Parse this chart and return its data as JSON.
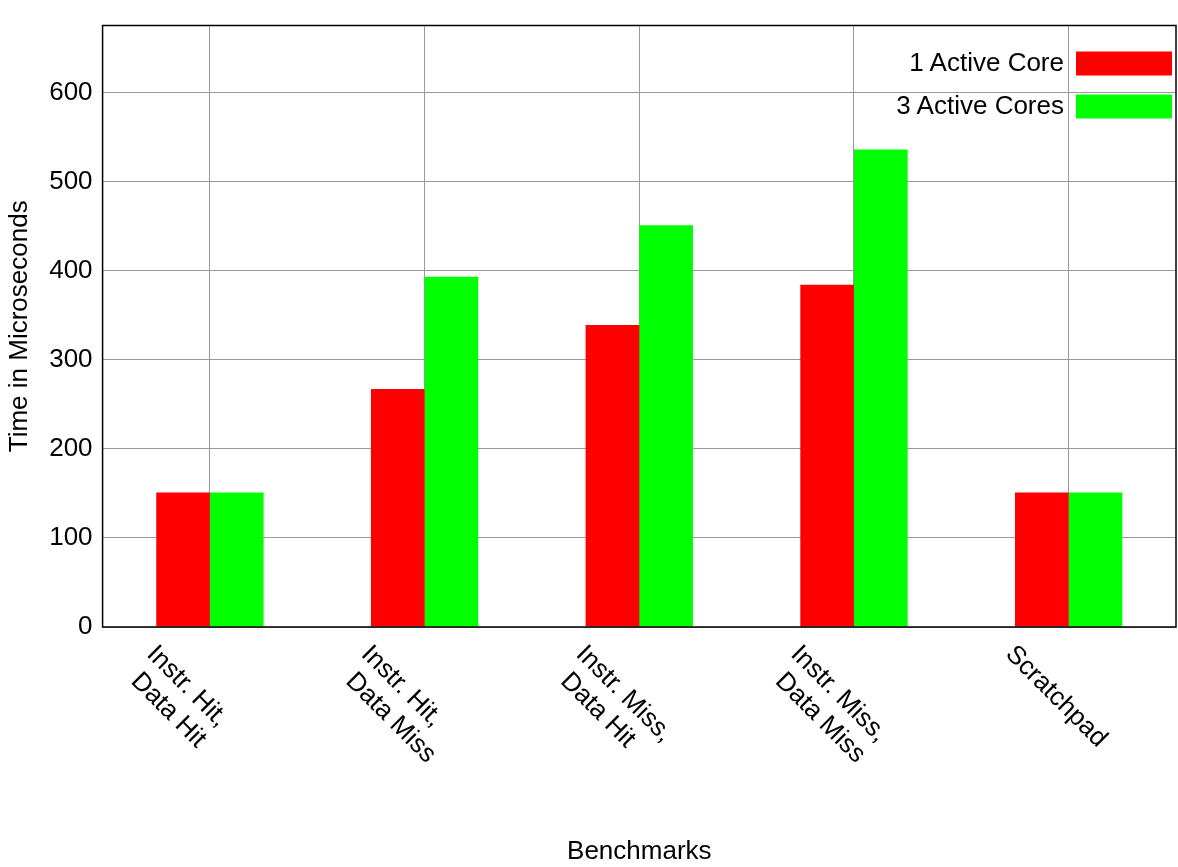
{
  "chart_data": {
    "type": "bar",
    "xlabel": "Benchmarks",
    "ylabel": "Time in Microseconds",
    "categories": [
      "Instr. Hit,\nData Hit",
      "Instr. Hit,\nData Miss",
      "Instr. Miss,\nData Hit",
      "Instr. Miss,\nData Miss",
      "Scratchpad"
    ],
    "series": [
      {
        "name": "1 Active Core",
        "color": "#ff0000",
        "values": [
          151,
          267,
          339,
          384,
          151
        ]
      },
      {
        "name": "3 Active Cores",
        "color": "#00ff00",
        "values": [
          151,
          393,
          451,
          536,
          151
        ]
      }
    ],
    "ylim": [
      0,
      675
    ],
    "yticks": [
      0,
      100,
      200,
      300,
      400,
      500,
      600
    ],
    "grid": true,
    "legend": "top right"
  }
}
